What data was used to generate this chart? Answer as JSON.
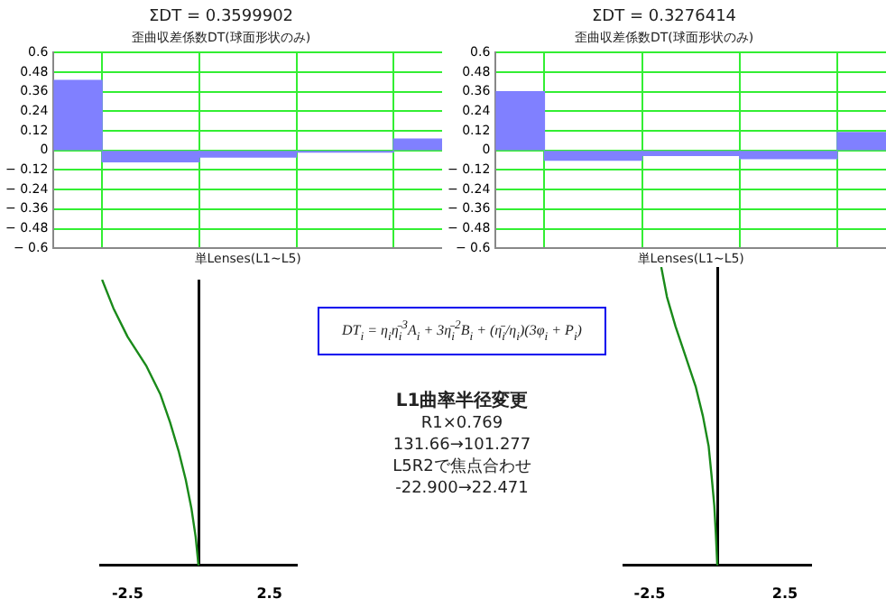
{
  "chart_data": [
    {
      "type": "bar",
      "title": "ΣDT = 0.3599902",
      "subtitle": "歪曲収差係数DT(球面形状のみ)",
      "xlabel": "単Lenses(L1~L5)",
      "categories": [
        null,
        null,
        null,
        null,
        null
      ],
      "values": [
        0.43,
        -0.07,
        -0.04,
        -0.01,
        0.07
      ],
      "color": "#8080ff",
      "ylim": [
        -0.6,
        0.6
      ],
      "yticks": [
        {
          "value": -0.6,
          "label": "− 0.6"
        },
        {
          "value": -0.48,
          "label": "− 0.48"
        },
        {
          "value": -0.36,
          "label": "− 0.36"
        },
        {
          "value": -0.24,
          "label": "− 0.24"
        },
        {
          "value": -0.12,
          "label": "− 0.12"
        },
        0,
        0.12,
        0.24,
        0.36,
        0.48,
        0.6
      ],
      "grid": true,
      "tick_labels": "y"
    },
    {
      "type": "bar",
      "title": "ΣDT = 0.3276414",
      "subtitle": "歪曲収差係数DT(球面形状のみ)",
      "xlabel": "単Lenses(L1~L5)",
      "categories": [
        null,
        null,
        null,
        null,
        null
      ],
      "values": [
        0.36,
        -0.06,
        -0.03,
        -0.05,
        0.11
      ],
      "color": "#8080ff",
      "ylim": [
        -0.6,
        0.6
      ],
      "yticks": [
        {
          "value": -0.6,
          "label": "− 0.6"
        },
        {
          "value": -0.48,
          "label": "− 0.48"
        },
        {
          "value": -0.36,
          "label": "− 0.36"
        },
        {
          "value": -0.24,
          "label": "− 0.24"
        },
        {
          "value": -0.12,
          "label": "− 0.12"
        },
        0,
        0.12,
        0.24,
        0.36,
        0.48,
        0.6
      ],
      "grid": true,
      "tick_labels": "y"
    },
    {
      "type": "line",
      "orientation": "horizontal",
      "categories": [
        null,
        null,
        null,
        null,
        null,
        null,
        null,
        null,
        null,
        null,
        null
      ],
      "values": [
        -3.4,
        -3.0,
        -2.5,
        -1.85,
        -1.35,
        -1.0,
        -0.7,
        -0.45,
        -0.25,
        -0.1,
        0
      ],
      "color": "#1a8a1a",
      "xlim": [
        -3.5,
        3.5
      ],
      "xticks": [
        {
          "value": -2.5,
          "label": "-2.5"
        },
        2.5
      ],
      "marker": "none",
      "tick_labels": "x"
    },
    {
      "type": "line",
      "orientation": "horizontal",
      "categories": [
        null,
        null,
        null,
        null,
        null,
        null,
        null,
        null,
        null,
        null,
        null
      ],
      "values": [
        -2.07,
        -1.86,
        -1.54,
        -1.17,
        -0.8,
        -0.53,
        -0.32,
        -0.21,
        -0.11,
        -0.05,
        0
      ],
      "color": "#1a8a1a",
      "xlim": [
        -3.5,
        3.5
      ],
      "xticks": [
        {
          "value": -2.5,
          "label": "-2.5"
        },
        2.5
      ],
      "marker": "none",
      "tick_labels": "x"
    },
    {
      "type": "other",
      "title": "L1曲率半径変更",
      "annotations": [
        "DT$_{i}$ = η$_{i}$η̄$_{i}$$^{3}$A$_{i}$ + 3η̄$_{i}$$^{2}$B$_{i}$ + (η̄$_{i}$/η$_{i}$)(3φ$_{i}$ + P$_{i}$)",
        "R1×0.769",
        "131.66→101.277",
        "L5R2で焦点合わせ",
        "-22.900→22.471"
      ]
    }
  ]
}
